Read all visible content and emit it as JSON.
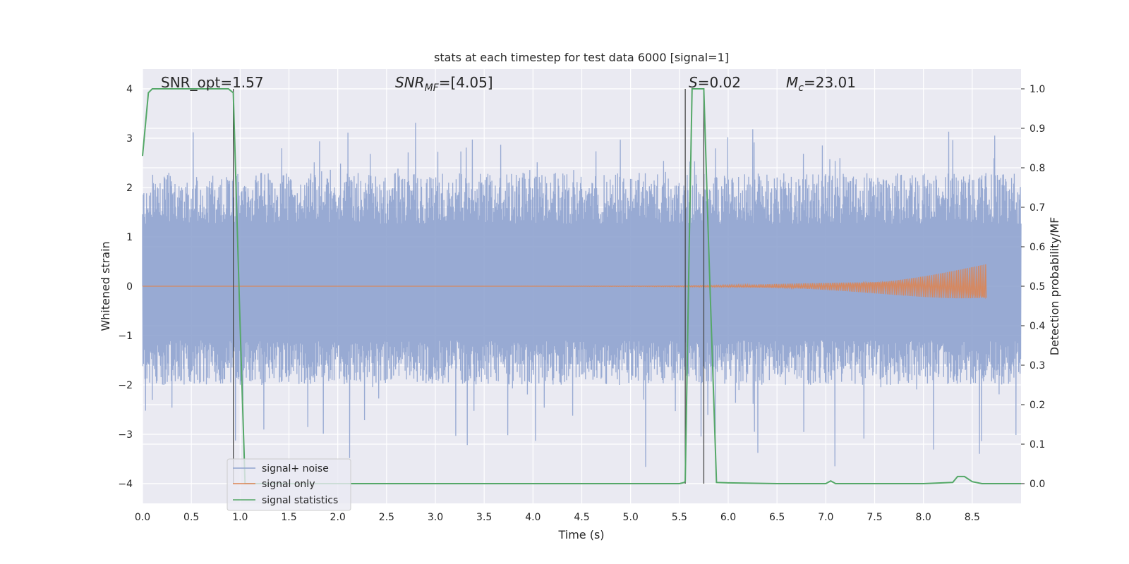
{
  "chart_data": {
    "type": "line",
    "title": "stats at each timestep for test data 6000 [signal=1]",
    "xlabel": "Time (s)",
    "ylabel": "Whitened strain",
    "y2label": "Detection probability/MF",
    "xlim": [
      0,
      9.0
    ],
    "ylim": [
      -4.4,
      4.4
    ],
    "y2lim": [
      -0.05,
      1.05
    ],
    "x_ticks": [
      "0.0",
      "0.5",
      "1.0",
      "1.5",
      "2.0",
      "2.5",
      "3.0",
      "3.5",
      "4.0",
      "4.5",
      "5.0",
      "5.5",
      "6.0",
      "6.5",
      "7.0",
      "7.5",
      "8.0",
      "8.5"
    ],
    "y_ticks": [
      "−4",
      "−3",
      "−2",
      "−1",
      "0",
      "1",
      "2",
      "3",
      "4"
    ],
    "y2_ticks": [
      "0.0",
      "0.1",
      "0.2",
      "0.3",
      "0.4",
      "0.5",
      "0.6",
      "0.7",
      "0.8",
      "0.9",
      "1.0"
    ],
    "grid": true,
    "legend_position": "lower-left",
    "annotations": {
      "snr_opt": "SNR_opt=1.57",
      "snr_mf_sym": "SNR",
      "snr_mf_sub": "MF",
      "snr_mf_val": "=[4.05]",
      "s_sym": "S",
      "s_val": "=0.02",
      "mc_sym": "M",
      "mc_sub": "c",
      "mc_val": "=23.01"
    },
    "vertical_lines_x": [
      0.93,
      5.56,
      5.75
    ],
    "series": [
      {
        "name": "signal+ noise",
        "color": "#8fa3cf",
        "axis": "left",
        "x_range": [
          0,
          9.0
        ],
        "typical_envelope": [
          -2.0,
          2.3
        ],
        "peak_extremes": [
          -3.8,
          3.7
        ]
      },
      {
        "name": "signal only",
        "color": "#dd8452",
        "axis": "left",
        "x_range": [
          0,
          8.65
        ],
        "description_values": {
          "amplitude_start": 0.0,
          "amplitude_end_at_8.65": 0.45
        }
      },
      {
        "name": "signal statistics",
        "color": "#55a868",
        "axis": "right",
        "x": [
          0.0,
          0.06,
          0.1,
          0.2,
          0.4,
          0.6,
          0.8,
          0.88,
          0.93,
          1.0,
          1.05,
          1.5,
          2.0,
          3.0,
          4.0,
          5.0,
          5.5,
          5.55,
          5.56,
          5.6,
          5.63,
          5.7,
          5.75,
          5.8,
          5.88,
          6.0,
          6.5,
          7.0,
          7.05,
          7.1,
          8.0,
          8.3,
          8.35,
          8.42,
          8.5,
          8.6,
          9.0
        ],
        "y": [
          0.83,
          0.99,
          1.0,
          1.0,
          1.0,
          1.0,
          1.0,
          1.0,
          0.99,
          0.4,
          0.0,
          0.0,
          0.0,
          0.0,
          0.0,
          0.0,
          0.0,
          0.003,
          0.006,
          0.6,
          1.0,
          1.0,
          1.0,
          0.6,
          0.003,
          0.002,
          0.0,
          0.0,
          0.007,
          0.0,
          0.0,
          0.003,
          0.018,
          0.018,
          0.005,
          0.0,
          0.0
        ]
      }
    ]
  }
}
